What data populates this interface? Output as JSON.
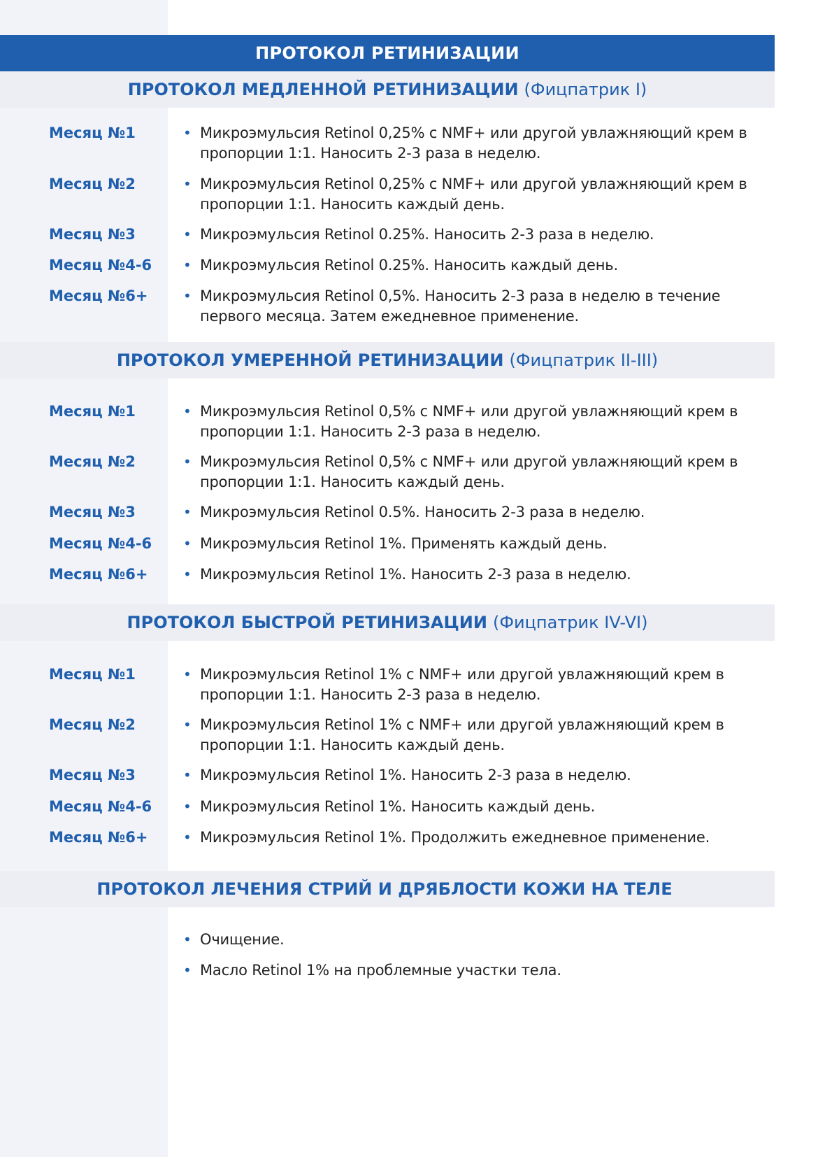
{
  "title": "ПРОТОКОЛ РЕТИНИЗАЦИИ",
  "accent_color": "#205fae",
  "sections": [
    {
      "title": "ПРОТОКОЛ МЕДЛЕННОЙ РЕТИНИЗАЦИИ",
      "subtitle": "(Фицпатрик I)",
      "rows": [
        {
          "month": "Месяц №1",
          "text": "Микроэмульсия Retinol 0,25% с NMF+ или другой увлажняющий крем в пропорции 1:1. Наносить 2-3 раза в неделю."
        },
        {
          "month": "Месяц №2",
          "text": "Микроэмульсия Retinol 0,25% с NMF+ или другой увлажняющий крем в пропорции 1:1. Наносить каждый день."
        },
        {
          "month": "Месяц №3",
          "text": "Микроэмульсия Retinol 0.25%. Наносить 2-3 раза в неделю."
        },
        {
          "month": "Месяц №4-6",
          "text": "Микроэмульсия Retinol 0.25%. Наносить каждый день."
        },
        {
          "month": "Месяц №6+",
          "text": "Микроэмульсия Retinol 0,5%. Наносить 2-3 раза в неделю в течение первого месяца. Затем ежедневное применение."
        }
      ]
    },
    {
      "title": "ПРОТОКОЛ УМЕРЕННОЙ РЕТИНИЗАЦИИ",
      "subtitle": "(Фицпатрик II-III)",
      "rows": [
        {
          "month": "Месяц №1",
          "text": "Микроэмульсия Retinol 0,5% с NMF+ или другой увлажняющий крем в пропорции 1:1. Наносить 2-3 раза в неделю."
        },
        {
          "month": "Месяц №2",
          "text": "Микроэмульсия Retinol 0,5% с NMF+ или другой увлажняющий крем в пропорции 1:1. Наносить каждый день."
        },
        {
          "month": "Месяц №3",
          "text": "Микроэмульсия Retinol 0.5%. Наносить 2-3 раза в неделю."
        },
        {
          "month": "Месяц №4-6",
          "text": "Микроэмульсия Retinol 1%. Применять каждый день."
        },
        {
          "month": "Месяц №6+",
          "text": "Микроэмульсия Retinol 1%. Наносить 2-3 раза в неделю."
        }
      ]
    },
    {
      "title": "ПРОТОКОЛ БЫСТРОЙ РЕТИНИЗАЦИИ",
      "subtitle": "(Фицпатрик IV-VI)",
      "rows": [
        {
          "month": "Месяц №1",
          "text": "Микроэмульсия Retinol 1% с NMF+ или другой увлажняющий крем в пропорции 1:1. Наносить 2-3 раза в неделю."
        },
        {
          "month": "Месяц №2",
          "text": "Микроэмульсия Retinol 1% с NMF+ или другой увлажняющий крем в пропорции 1:1. Наносить каждый день."
        },
        {
          "month": "Месяц №3",
          "text": "Микроэмульсия Retinol 1%. Наносить 2-3 раза в неделю."
        },
        {
          "month": "Месяц №4-6",
          "text": "Микроэмульсия Retinol 1%. Наносить каждый день."
        },
        {
          "month": "Месяц №6+",
          "text": "Микроэмульсия Retinol 1%. Продолжить ежедневное применение."
        }
      ]
    },
    {
      "title": "ПРОТОКОЛ ЛЕЧЕНИЯ СТРИЙ И ДРЯБЛОСТИ КОЖИ НА ТЕЛЕ",
      "subtitle": "",
      "rows": [
        {
          "month": "",
          "text": "Очищение."
        },
        {
          "month": "",
          "text": "Масло Retinol 1% на проблемные участки тела."
        }
      ]
    }
  ]
}
